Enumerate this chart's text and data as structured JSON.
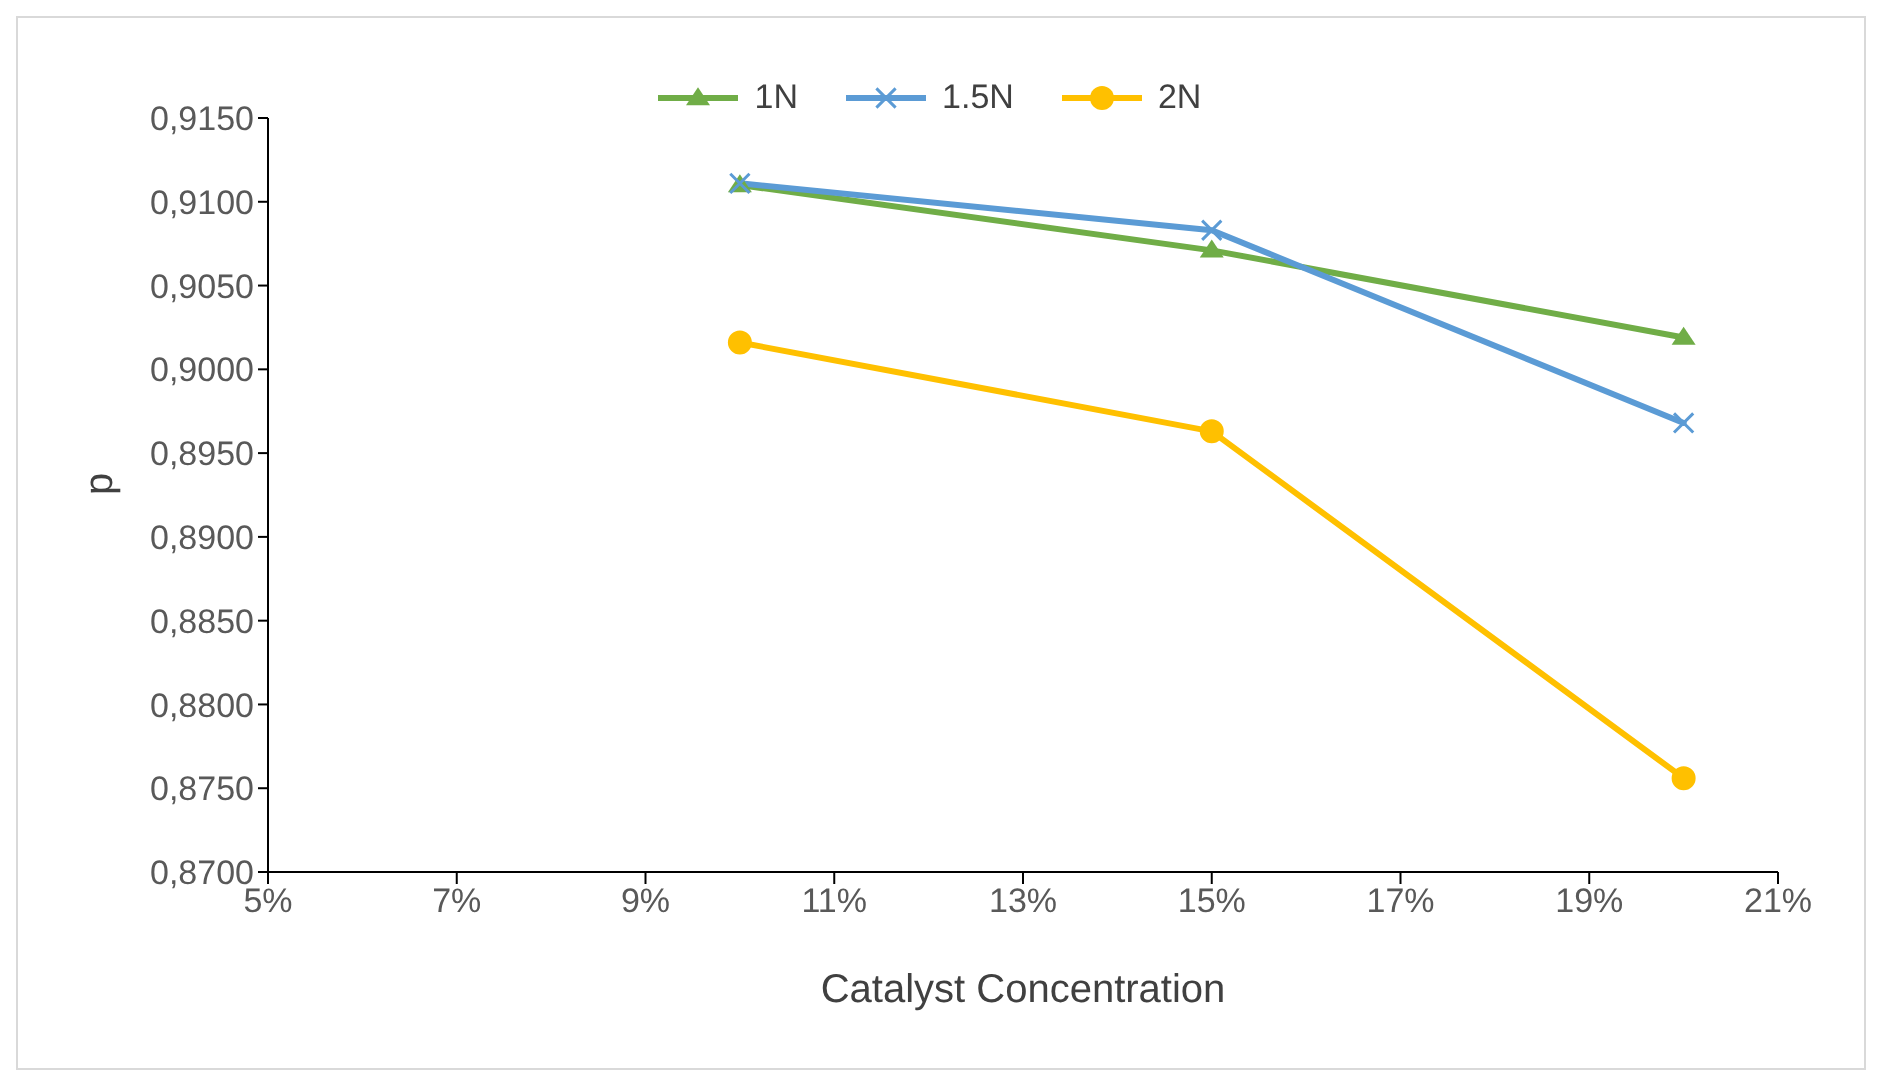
{
  "chart_data": {
    "type": "line",
    "xlabel": "Catalyst Concentration",
    "ylabel": "p",
    "x": [
      10,
      15,
      20
    ],
    "series": [
      {
        "name": "1N",
        "color": "#70ad47",
        "marker": "triangle",
        "values": [
          0.911,
          0.9071,
          0.9019
        ]
      },
      {
        "name": "1.5N",
        "color": "#5b9bd5",
        "marker": "cross",
        "values": [
          0.9111,
          0.9083,
          0.8968
        ]
      },
      {
        "name": "2N",
        "color": "#ffc000",
        "marker": "circle",
        "values": [
          0.9016,
          0.8963,
          0.8756
        ]
      }
    ],
    "xlim": [
      5,
      21
    ],
    "xticks": [
      {
        "value": 5,
        "label": "5%"
      },
      {
        "value": 7,
        "label": "7%"
      },
      {
        "value": 9,
        "label": "9%"
      },
      {
        "value": 11,
        "label": "11%"
      },
      {
        "value": 13,
        "label": "13%"
      },
      {
        "value": 15,
        "label": "15%"
      },
      {
        "value": 17,
        "label": "17%"
      },
      {
        "value": 19,
        "label": "19%"
      },
      {
        "value": 21,
        "label": "21%"
      }
    ],
    "ylim": [
      0.87,
      0.915
    ],
    "yticks": [
      {
        "value": 0.87,
        "label": "0,8700"
      },
      {
        "value": 0.875,
        "label": "0,8750"
      },
      {
        "value": 0.88,
        "label": "0,8800"
      },
      {
        "value": 0.885,
        "label": "0,8850"
      },
      {
        "value": 0.89,
        "label": "0,8900"
      },
      {
        "value": 0.895,
        "label": "0,8950"
      },
      {
        "value": 0.9,
        "label": "0,9000"
      },
      {
        "value": 0.905,
        "label": "0,9050"
      },
      {
        "value": 0.91,
        "label": "0,9100"
      },
      {
        "value": 0.915,
        "label": "0,9150"
      }
    ],
    "grid": false,
    "legend": "top",
    "line_style": "solid"
  }
}
